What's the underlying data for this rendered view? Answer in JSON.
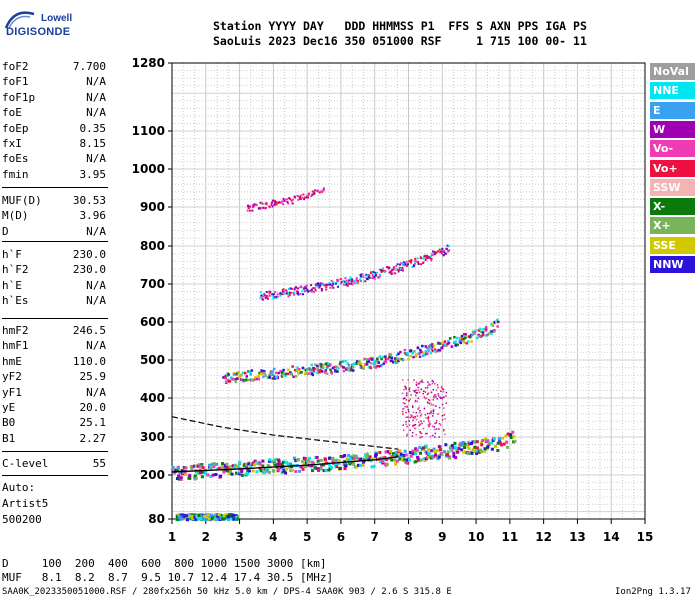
{
  "logo": {
    "top": "Lowell",
    "main": "DIGISONDE"
  },
  "header": {
    "line1": "Station YYYY DAY   DDD HHMMSS P1  FFS S AXN PPS IGA PS",
    "line2": "SaoLuis 2023 Dec16 350 051000 RSF     1 715 100 00- 11"
  },
  "params": {
    "group1": [
      {
        "label": "foF2",
        "value": "7.700"
      },
      {
        "label": "foF1",
        "value": "N/A"
      },
      {
        "label": "foF1p",
        "value": "N/A"
      },
      {
        "label": "foE",
        "value": "N/A"
      },
      {
        "label": "foEp",
        "value": "0.35"
      },
      {
        "label": "fxI",
        "value": "8.15"
      },
      {
        "label": "foEs",
        "value": "N/A"
      },
      {
        "label": "fmin",
        "value": "3.95"
      }
    ],
    "group2": [
      {
        "label": "MUF(D)",
        "value": "30.53"
      },
      {
        "label": "M(D)",
        "value": "3.96"
      },
      {
        "label": "D",
        "value": "N/A"
      }
    ],
    "group3": [
      {
        "label": "h`F",
        "value": "230.0"
      },
      {
        "label": "h`F2",
        "value": "230.0"
      },
      {
        "label": "h`E",
        "value": "N/A"
      },
      {
        "label": "h`Es",
        "value": "N/A"
      }
    ],
    "group4": [
      {
        "label": "hmF2",
        "value": "246.5"
      },
      {
        "label": "hmF1",
        "value": "N/A"
      },
      {
        "label": "hmE",
        "value": "110.0"
      },
      {
        "label": "yF2",
        "value": "25.9"
      },
      {
        "label": "yF1",
        "value": "N/A"
      },
      {
        "label": "yE",
        "value": "20.0"
      },
      {
        "label": "B0",
        "value": "25.1"
      },
      {
        "label": "B1",
        "value": "2.27"
      }
    ],
    "clevel": {
      "label": "C-level",
      "value": "55"
    },
    "auto": [
      "Auto:",
      "Artist5",
      "500200"
    ]
  },
  "legend": [
    {
      "label": "NoVal",
      "color": "#9e9e9e"
    },
    {
      "label": "NNE",
      "color": "#00e6f0"
    },
    {
      "label": "E",
      "color": "#3aa0f0"
    },
    {
      "label": "W",
      "color": "#a000b4"
    },
    {
      "label": "Vo-",
      "color": "#f03cb4"
    },
    {
      "label": "Vo+",
      "color": "#ee1040"
    },
    {
      "label": "SSW",
      "color": "#f5b4b4"
    },
    {
      "label": "X-",
      "color": "#0a7a0a"
    },
    {
      "label": "X+",
      "color": "#7ab45a"
    },
    {
      "label": "SSE",
      "color": "#d2c800"
    },
    {
      "label": "NNW",
      "color": "#2a14dc"
    }
  ],
  "chart_data": {
    "type": "scatter",
    "x_ticks": [
      "1",
      "2",
      "3",
      "4",
      "5",
      "6",
      "7",
      "8",
      "9",
      "10",
      "11",
      "12",
      "13",
      "14",
      "15"
    ],
    "y_ticks": [
      {
        "value": 80,
        "label": "80"
      },
      {
        "value": 200,
        "label": "200"
      },
      {
        "value": 300,
        "label": "300"
      },
      {
        "value": 400,
        "label": "400"
      },
      {
        "value": 500,
        "label": "500"
      },
      {
        "value": 600,
        "label": "600"
      },
      {
        "value": 700,
        "label": "700"
      },
      {
        "value": 800,
        "label": "800"
      },
      {
        "value": 900,
        "label": "900"
      },
      {
        "value": 1000,
        "label": "1000"
      },
      {
        "value": 1100,
        "label": "1100"
      },
      {
        "value": 1280,
        "label": "1280"
      }
    ],
    "xlim": [
      1,
      15
    ],
    "traces": [
      {
        "name": "F-trace",
        "x": [
          1.0,
          3.0,
          5.0,
          6.5,
          7.7,
          8.5,
          9.5,
          10.5,
          11.1
        ],
        "y": [
          208,
          220,
          232,
          240,
          250,
          262,
          270,
          285,
          300
        ]
      },
      {
        "name": "second-hop",
        "x": [
          2.5,
          4,
          5.5,
          7,
          8.5,
          10.0,
          10.6
        ],
        "y": [
          455,
          468,
          480,
          497,
          530,
          570,
          595
        ]
      },
      {
        "name": "third-hop",
        "x": [
          3.6,
          5,
          6.5,
          7.5,
          8.5,
          9.2
        ],
        "y": [
          670,
          688,
          715,
          740,
          770,
          795
        ]
      },
      {
        "name": "fourth-hop",
        "x": [
          3.2,
          4.5,
          5.5
        ],
        "y": [
          900,
          920,
          945
        ]
      }
    ],
    "profile": {
      "x": [
        1.0,
        2.5,
        4.0,
        5.5,
        7.0,
        7.7
      ],
      "y": [
        352,
        325,
        305,
        290,
        275,
        268
      ]
    },
    "model_curve": {
      "x": [
        1.0,
        3.0,
        5.0,
        7.0,
        7.7
      ],
      "y": [
        208,
        216,
        226,
        240,
        248
      ]
    }
  },
  "footer": {
    "d_row": "D     100  200  400  600  800 1000 1500 3000 [km]",
    "muf_row": "MUF   8.1  8.2  8.7  9.5 10.7 12.4 17.4 30.5 [MHz]",
    "info": "SAA0K_2023350051000.RSF / 280fx256h 50 kHz 5.0 km / DPS-4 SAA0K 903 / 2.6 S 315.8 E",
    "version": "Ion2Png 1.3.17"
  }
}
